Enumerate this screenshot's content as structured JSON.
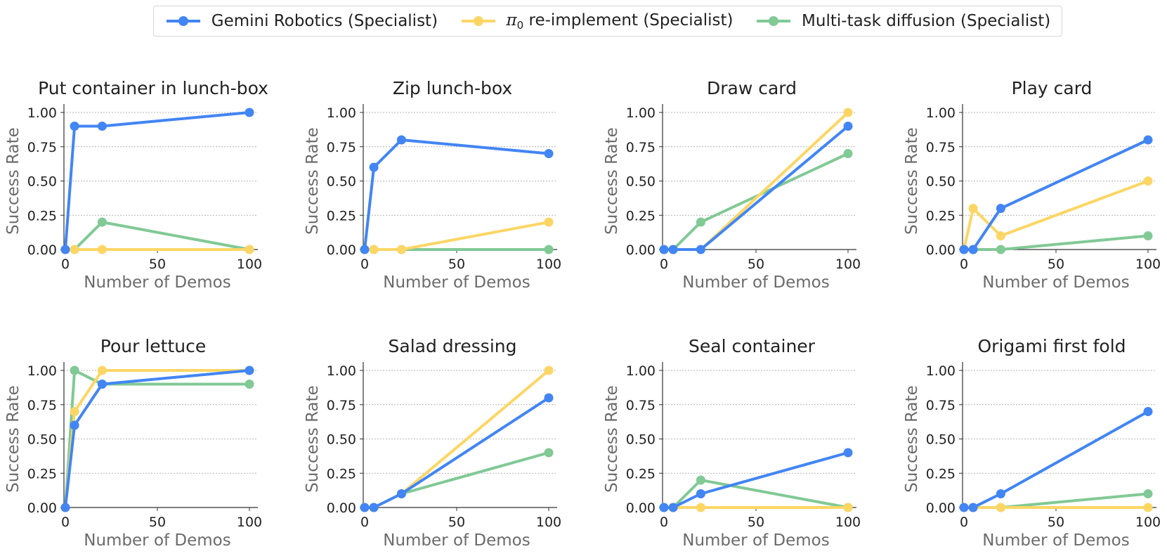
{
  "legend": {
    "gemini_label": "Gemini Robotics (Specialist)",
    "pi0_symbol": "π",
    "pi0_sub": "0",
    "pi0_label": " re-implement (Specialist)",
    "mtd_label": "Multi-task diffusion (Specialist)"
  },
  "colors": {
    "gemini": "#4285F4",
    "pi0": "#FCD665",
    "mtd": "#81C995",
    "axis_text": "#6b6b6b",
    "grid": "#9e9e9e"
  },
  "chart_data": [
    {
      "type": "line",
      "title": "Put container in lunch-box",
      "xlabel": "Number of Demos",
      "ylabel": "Success Rate",
      "ylim": [
        0,
        1
      ],
      "xlim": [
        0,
        100
      ],
      "xticks": [
        0,
        50,
        100
      ],
      "yticks": [
        "0.00",
        "0.25",
        "0.50",
        "0.75",
        "1.00"
      ],
      "grid": "horizontal dotted",
      "series": [
        {
          "name": "Gemini Robotics (Specialist)",
          "x": [
            0,
            5,
            20,
            100
          ],
          "y": [
            0,
            0.9,
            0.9,
            1.0
          ]
        },
        {
          "name": "π0 re-implement (Specialist)",
          "x": [
            0,
            5,
            20,
            100
          ],
          "y": [
            0,
            0,
            0,
            0
          ]
        },
        {
          "name": "Multi-task diffusion (Specialist)",
          "x": [
            0,
            5,
            20,
            100
          ],
          "y": [
            0,
            0,
            0.2,
            0
          ]
        }
      ]
    },
    {
      "type": "line",
      "title": "Zip lunch-box",
      "xlabel": "Number of Demos",
      "ylabel": "Success Rate",
      "ylim": [
        0,
        1
      ],
      "xlim": [
        0,
        100
      ],
      "xticks": [
        0,
        50,
        100
      ],
      "yticks": [
        "0.00",
        "0.25",
        "0.50",
        "0.75",
        "1.00"
      ],
      "grid": "horizontal dotted",
      "series": [
        {
          "name": "Gemini Robotics (Specialist)",
          "x": [
            0,
            5,
            20,
            100
          ],
          "y": [
            0,
            0.6,
            0.8,
            0.7
          ]
        },
        {
          "name": "π0 re-implement (Specialist)",
          "x": [
            0,
            5,
            20,
            100
          ],
          "y": [
            0,
            0,
            0,
            0.2
          ]
        },
        {
          "name": "Multi-task diffusion (Specialist)",
          "x": [
            0,
            5,
            20,
            100
          ],
          "y": [
            0,
            0,
            0,
            0
          ]
        }
      ]
    },
    {
      "type": "line",
      "title": "Draw card",
      "xlabel": "Number of Demos",
      "ylabel": "Success Rate",
      "ylim": [
        0,
        1
      ],
      "xlim": [
        0,
        100
      ],
      "xticks": [
        0,
        50,
        100
      ],
      "yticks": [
        "0.00",
        "0.25",
        "0.50",
        "0.75",
        "1.00"
      ],
      "grid": "horizontal dotted",
      "series": [
        {
          "name": "Gemini Robotics (Specialist)",
          "x": [
            0,
            5,
            20,
            100
          ],
          "y": [
            0,
            0,
            0,
            0.9
          ]
        },
        {
          "name": "π0 re-implement (Specialist)",
          "x": [
            0,
            5,
            20,
            100
          ],
          "y": [
            0,
            0,
            0,
            1.0
          ]
        },
        {
          "name": "Multi-task diffusion (Specialist)",
          "x": [
            0,
            5,
            20,
            100
          ],
          "y": [
            0,
            0,
            0.2,
            0.7
          ]
        }
      ]
    },
    {
      "type": "line",
      "title": "Play card",
      "xlabel": "Number of Demos",
      "ylabel": "Success Rate",
      "ylim": [
        0,
        1
      ],
      "xlim": [
        0,
        100
      ],
      "xticks": [
        0,
        50,
        100
      ],
      "yticks": [
        "0.00",
        "0.25",
        "0.50",
        "0.75",
        "1.00"
      ],
      "grid": "horizontal dotted",
      "series": [
        {
          "name": "Gemini Robotics (Specialist)",
          "x": [
            0,
            5,
            20,
            100
          ],
          "y": [
            0,
            0,
            0.3,
            0.8
          ]
        },
        {
          "name": "π0 re-implement (Specialist)",
          "x": [
            0,
            5,
            20,
            100
          ],
          "y": [
            0,
            0.3,
            0.1,
            0.5
          ]
        },
        {
          "name": "Multi-task diffusion (Specialist)",
          "x": [
            0,
            5,
            20,
            100
          ],
          "y": [
            0,
            0,
            0,
            0.1
          ]
        }
      ]
    },
    {
      "type": "line",
      "title": "Pour lettuce",
      "xlabel": "Number of Demos",
      "ylabel": "Success Rate",
      "ylim": [
        0,
        1
      ],
      "xlim": [
        0,
        100
      ],
      "xticks": [
        0,
        50,
        100
      ],
      "yticks": [
        "0.00",
        "0.25",
        "0.50",
        "0.75",
        "1.00"
      ],
      "grid": "horizontal dotted",
      "series": [
        {
          "name": "Gemini Robotics (Specialist)",
          "x": [
            0,
            5,
            20,
            100
          ],
          "y": [
            0,
            0.6,
            0.9,
            1.0
          ]
        },
        {
          "name": "π0 re-implement (Specialist)",
          "x": [
            0,
            5,
            20,
            100
          ],
          "y": [
            0,
            0.7,
            1.0,
            1.0
          ]
        },
        {
          "name": "Multi-task diffusion (Specialist)",
          "x": [
            0,
            5,
            20,
            100
          ],
          "y": [
            0,
            1.0,
            0.9,
            0.9
          ]
        }
      ]
    },
    {
      "type": "line",
      "title": "Salad dressing",
      "xlabel": "Number of Demos",
      "ylabel": "Success Rate",
      "ylim": [
        0,
        1
      ],
      "xlim": [
        0,
        100
      ],
      "xticks": [
        0,
        50,
        100
      ],
      "yticks": [
        "0.00",
        "0.25",
        "0.50",
        "0.75",
        "1.00"
      ],
      "grid": "horizontal dotted",
      "series": [
        {
          "name": "Gemini Robotics (Specialist)",
          "x": [
            0,
            5,
            20,
            100
          ],
          "y": [
            0,
            0,
            0.1,
            0.8
          ]
        },
        {
          "name": "π0 re-implement (Specialist)",
          "x": [
            0,
            5,
            20,
            100
          ],
          "y": [
            0,
            0,
            0.1,
            1.0
          ]
        },
        {
          "name": "Multi-task diffusion (Specialist)",
          "x": [
            0,
            5,
            20,
            100
          ],
          "y": [
            0,
            0,
            0.1,
            0.4
          ]
        }
      ]
    },
    {
      "type": "line",
      "title": "Seal container",
      "xlabel": "Number of Demos",
      "ylabel": "Success Rate",
      "ylim": [
        0,
        1
      ],
      "xlim": [
        0,
        100
      ],
      "xticks": [
        0,
        50,
        100
      ],
      "yticks": [
        "0.00",
        "0.25",
        "0.50",
        "0.75",
        "1.00"
      ],
      "grid": "horizontal dotted",
      "series": [
        {
          "name": "Gemini Robotics (Specialist)",
          "x": [
            0,
            5,
            20,
            100
          ],
          "y": [
            0,
            0,
            0.1,
            0.4
          ]
        },
        {
          "name": "π0 re-implement (Specialist)",
          "x": [
            0,
            5,
            20,
            100
          ],
          "y": [
            0,
            0,
            0,
            0
          ]
        },
        {
          "name": "Multi-task diffusion (Specialist)",
          "x": [
            0,
            5,
            20,
            100
          ],
          "y": [
            0,
            0,
            0.2,
            0
          ]
        }
      ]
    },
    {
      "type": "line",
      "title": "Origami first fold",
      "xlabel": "Number of Demos",
      "ylabel": "Success Rate",
      "ylim": [
        0,
        1
      ],
      "xlim": [
        0,
        100
      ],
      "xticks": [
        0,
        50,
        100
      ],
      "yticks": [
        "0.00",
        "0.25",
        "0.50",
        "0.75",
        "1.00"
      ],
      "grid": "horizontal dotted",
      "series": [
        {
          "name": "Gemini Robotics (Specialist)",
          "x": [
            0,
            5,
            20,
            100
          ],
          "y": [
            0,
            0,
            0.1,
            0.7
          ]
        },
        {
          "name": "π0 re-implement (Specialist)",
          "x": [
            0,
            5,
            20,
            100
          ],
          "y": [
            0,
            0,
            0,
            0
          ]
        },
        {
          "name": "Multi-task diffusion (Specialist)",
          "x": [
            0,
            5,
            20,
            100
          ],
          "y": [
            0,
            0,
            0,
            0.1
          ]
        }
      ]
    }
  ]
}
